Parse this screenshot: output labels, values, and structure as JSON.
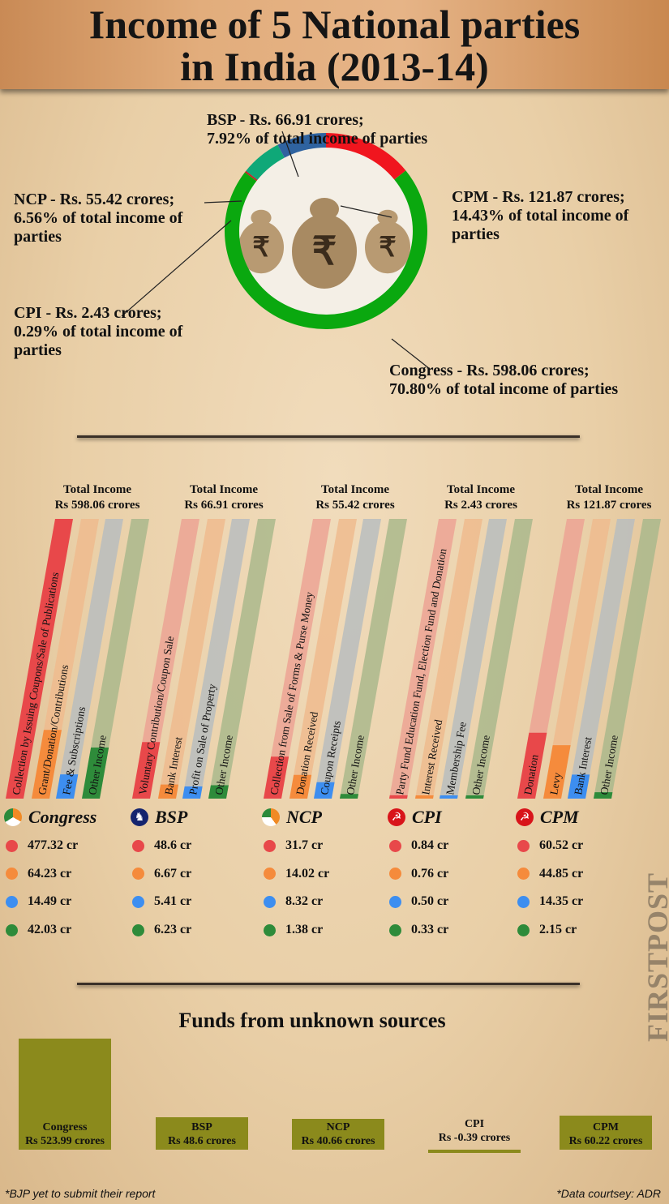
{
  "title": {
    "line1": "Income of 5 National parties",
    "line2": "in India (2013-14)"
  },
  "donut_labels": {
    "bsp": [
      "BSP - Rs. 66.91 crores;",
      "7.92% of total income of parties"
    ],
    "ncp": [
      "NCP - Rs. 55.42 crores;",
      "6.56% of total income of",
      "parties"
    ],
    "cpm": [
      "CPM - Rs. 121.87 crores;",
      "14.43% of total income of",
      "parties"
    ],
    "cpi": [
      "CPI - Rs. 2.43 crores;",
      "0.29% of total income of",
      "parties"
    ],
    "congress": [
      "Congress - Rs. 598.06 crores;",
      "70.80% of total income of parties"
    ]
  },
  "category_colors": {
    "c1": "#e8484a",
    "c2": "#f58b3c",
    "c3": "#3d8ef0",
    "c4": "#2e8b3a"
  },
  "parties": [
    {
      "name": "Congress",
      "icon": "congress-hand-icon",
      "total_label": "Total Income",
      "total": "Rs 598.06 crores",
      "categories": [
        "Collection by Issuing Coupons/Sale of Publications",
        "Grant/Donation/Contributions",
        "Fee & Subscriptions",
        "Other Income"
      ],
      "values": [
        "477.32 cr",
        "64.23 cr",
        "14.49 cr",
        "42.03 cr"
      ]
    },
    {
      "name": "BSP",
      "icon": "bsp-elephant-icon",
      "total_label": "Total Income",
      "total": "Rs 66.91 crores",
      "categories": [
        "Voluntary Contribution/Coupon Sale",
        "Bank Interest",
        "Profit on Sale of Property",
        "Other Income"
      ],
      "values": [
        "48.6 cr",
        "6.67 cr",
        "5.41 cr",
        "6.23 cr"
      ]
    },
    {
      "name": "NCP",
      "icon": "ncp-clock-icon",
      "total_label": "Total Income",
      "total": "Rs 55.42 crores",
      "categories": [
        "Collection from Sale of Forms & Purse Money",
        "Donation Received",
        "Coupon Receipts",
        "Other Income"
      ],
      "values": [
        "31.7 cr",
        "14.02 cr",
        "8.32 cr",
        "1.38 cr"
      ]
    },
    {
      "name": "CPI",
      "icon": "hammer-sickle-icon",
      "total_label": "Total Income",
      "total": "Rs 2.43 crores",
      "categories": [
        "Party Fund Education Fund, Election Fund and Donation",
        "Interest Received",
        "Membership Fee",
        "Other Income"
      ],
      "values": [
        "0.84 cr",
        "0.76 cr",
        "0.50 cr",
        "0.33 cr"
      ]
    },
    {
      "name": "CPM",
      "icon": "hammer-sickle-icon",
      "total_label": "Total Income",
      "total": "Rs 121.87 crores",
      "categories": [
        "Donation",
        "Levy",
        "Bank Interest",
        "Other Income"
      ],
      "values": [
        "60.52 cr",
        "44.85 cr",
        "14.35 cr",
        "2.15 cr"
      ]
    }
  ],
  "unknown": {
    "title": "Funds from unknown sources",
    "items": [
      {
        "name": "Congress",
        "label": "Rs 523.99 crores"
      },
      {
        "name": "BSP",
        "label": "Rs 48.6 crores"
      },
      {
        "name": "NCP",
        "label": "Rs 40.66 crores"
      },
      {
        "name": "CPI",
        "label": "Rs -0.39 crores"
      },
      {
        "name": "CPM",
        "label": "Rs 60.22 crores"
      }
    ],
    "bar_color": "#8b8a1c"
  },
  "footer": {
    "left": "*BJP yet to submit their report",
    "right": "*Data courtsey: ADR"
  },
  "watermark": "FIRSTPOST",
  "chart_data": [
    {
      "type": "pie",
      "donut": true,
      "categories": [
        "CPM",
        "Congress",
        "CPI",
        "NCP",
        "BSP"
      ],
      "values": [
        121.87,
        598.06,
        2.43,
        55.42,
        66.91
      ],
      "percent": [
        14.43,
        70.8,
        0.29,
        6.56,
        7.92
      ],
      "colors": [
        "#f0151e",
        "#0aa80f",
        "#c0282a",
        "#0fa878",
        "#2f63a0"
      ]
    },
    {
      "type": "bar",
      "orientation": "vertical",
      "groups": [
        "Congress",
        "BSP",
        "NCP",
        "CPI",
        "CPM"
      ],
      "series_values": [
        [
          477.32,
          64.23,
          14.49,
          42.03
        ],
        [
          48.6,
          6.67,
          5.41,
          6.23
        ],
        [
          31.7,
          14.02,
          8.32,
          1.38
        ],
        [
          0.84,
          0.76,
          0.5,
          0.33
        ],
        [
          60.52,
          44.85,
          14.35,
          2.15
        ]
      ]
    },
    {
      "type": "bar",
      "title": "Funds from unknown sources",
      "categories": [
        "Congress",
        "BSP",
        "NCP",
        "CPI",
        "CPM"
      ],
      "values": [
        523.99,
        48.6,
        40.66,
        -0.39,
        60.22
      ]
    }
  ]
}
